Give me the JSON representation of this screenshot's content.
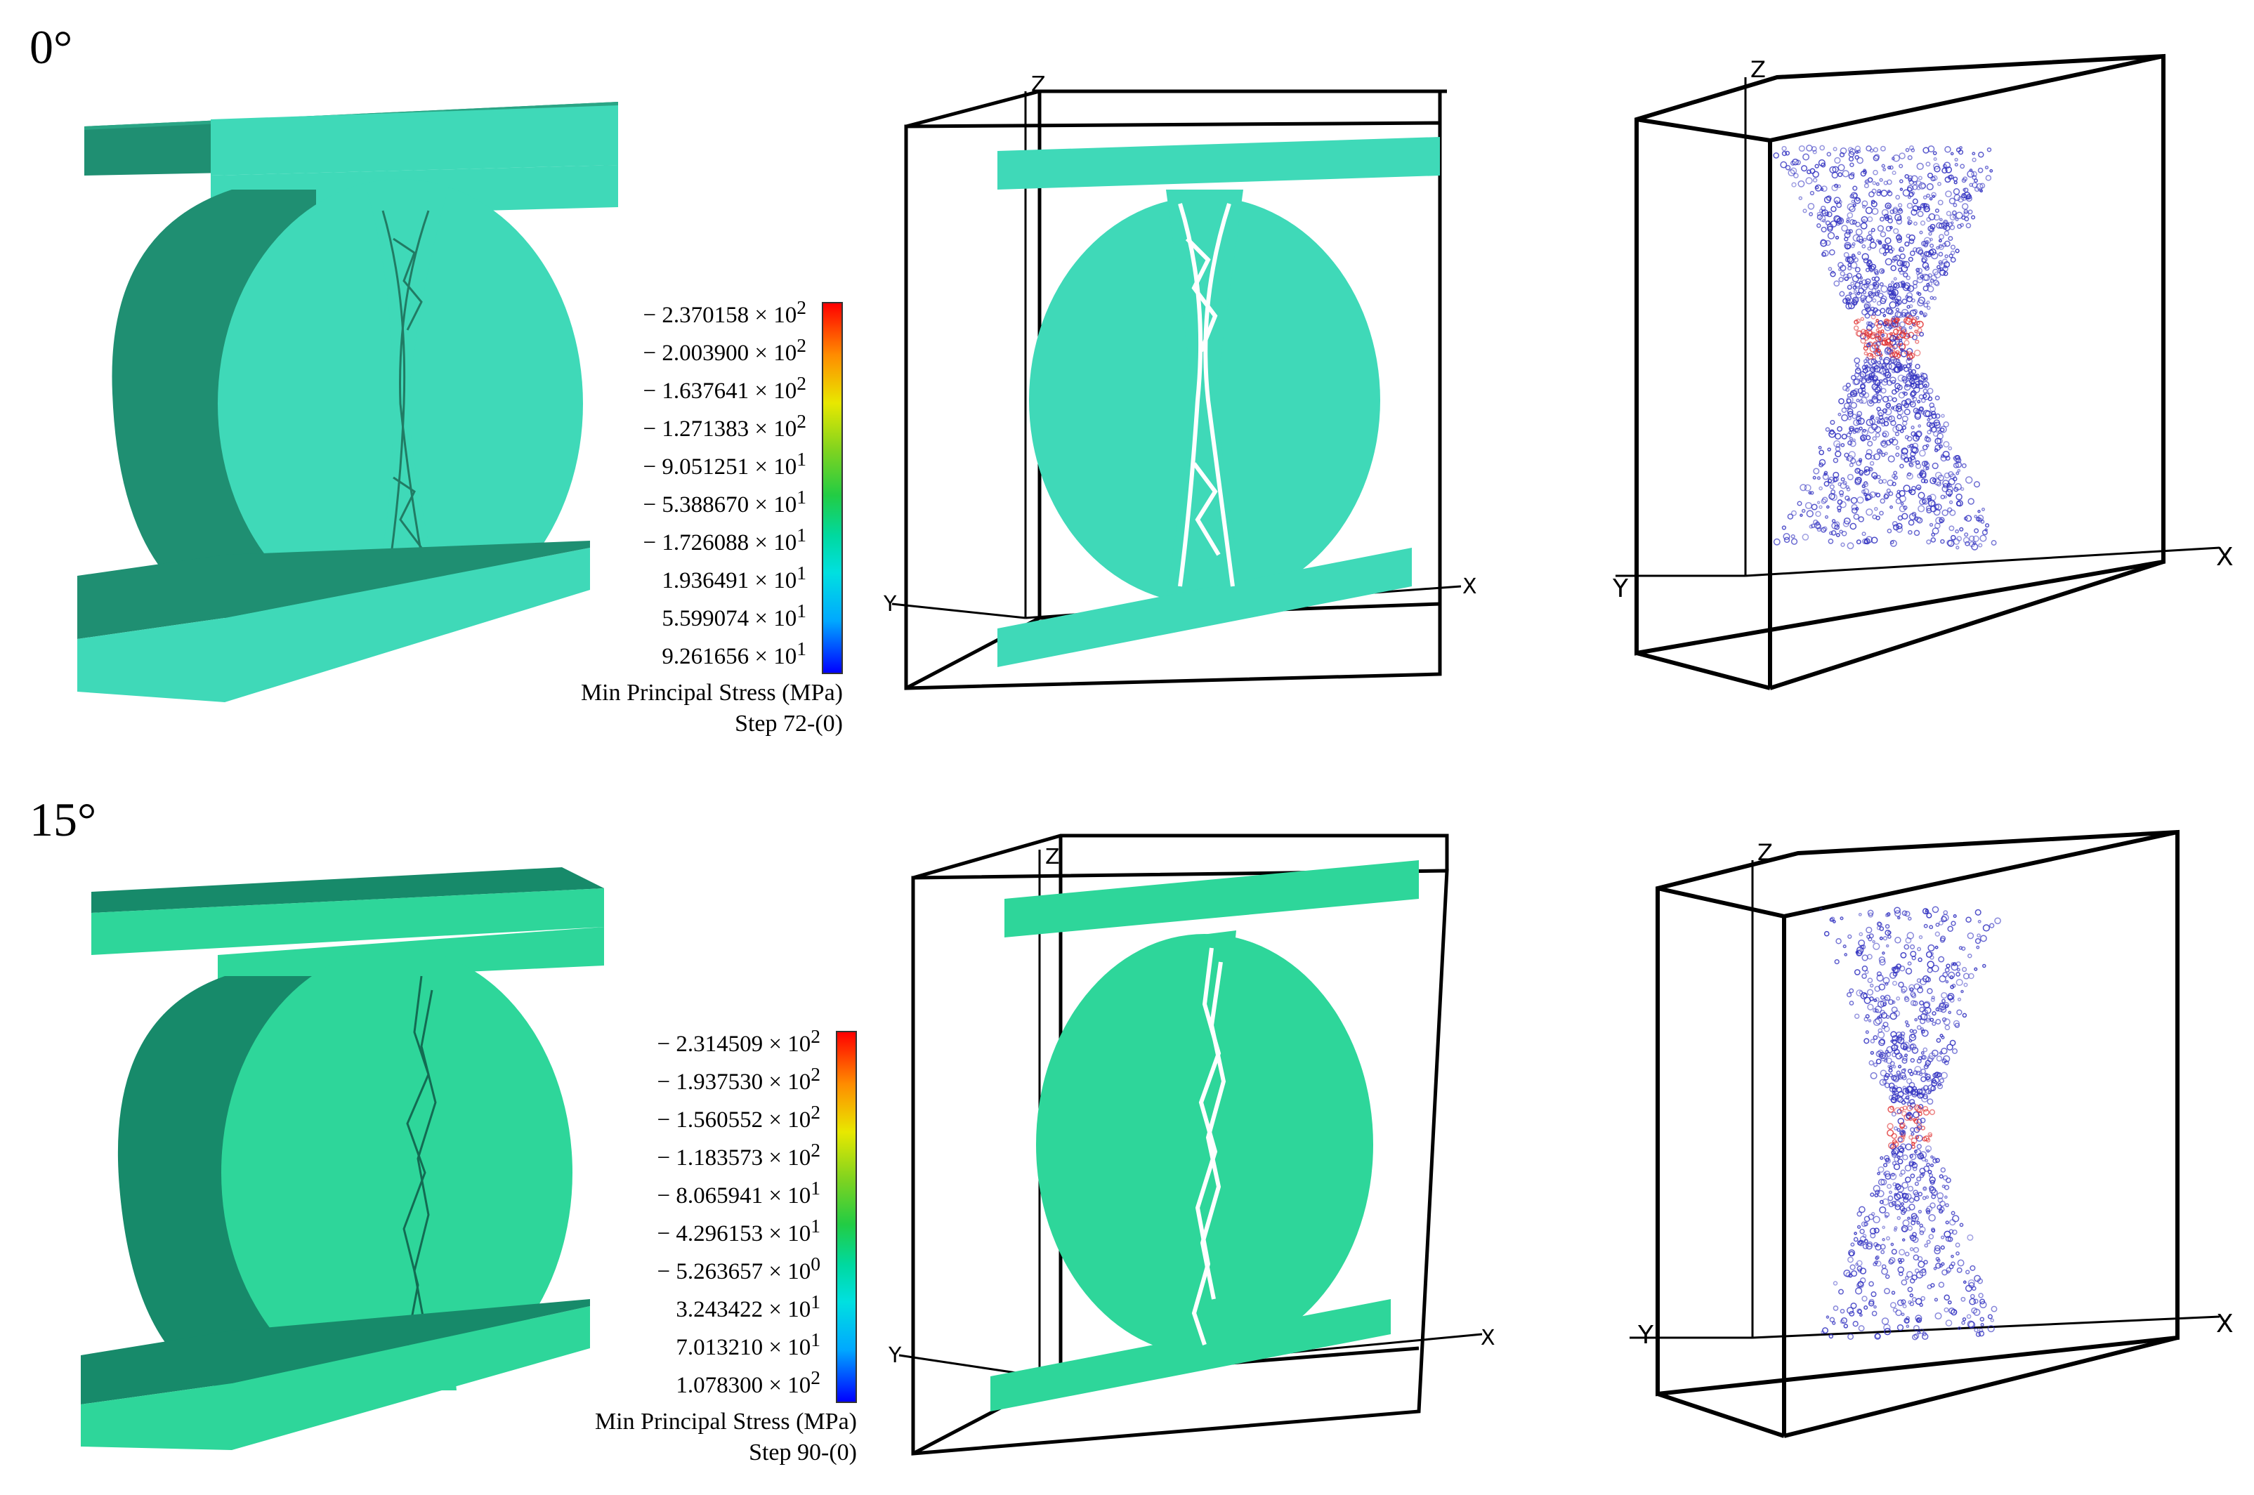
{
  "rows": [
    {
      "angle_label": "0°",
      "legend": {
        "ticks": [
          {
            "sign": "− ",
            "mant": "2.370158",
            "exp": "2"
          },
          {
            "sign": "− ",
            "mant": "2.003900",
            "exp": "2"
          },
          {
            "sign": "− ",
            "mant": "1.637641",
            "exp": "2"
          },
          {
            "sign": "− ",
            "mant": "1.271383",
            "exp": "2"
          },
          {
            "sign": "− ",
            "mant": "9.051251",
            "exp": "1"
          },
          {
            "sign": "− ",
            "mant": "5.388670",
            "exp": "1"
          },
          {
            "sign": "− ",
            "mant": "1.726088",
            "exp": "1"
          },
          {
            "sign": "",
            "mant": "1.936491",
            "exp": "1"
          },
          {
            "sign": "",
            "mant": "5.599074",
            "exp": "1"
          },
          {
            "sign": "",
            "mant": "9.261656",
            "exp": "1"
          }
        ],
        "title": "Min Principal Stress (MPa)",
        "step": "Step 72-(0)"
      }
    },
    {
      "angle_label": "15°",
      "legend": {
        "ticks": [
          {
            "sign": "− ",
            "mant": "2.314509",
            "exp": "2"
          },
          {
            "sign": "− ",
            "mant": "1.937530",
            "exp": "2"
          },
          {
            "sign": "− ",
            "mant": "1.560552",
            "exp": "2"
          },
          {
            "sign": "− ",
            "mant": "1.183573",
            "exp": "2"
          },
          {
            "sign": "− ",
            "mant": "8.065941",
            "exp": "1"
          },
          {
            "sign": "− ",
            "mant": "4.296153",
            "exp": "1"
          },
          {
            "sign": "− ",
            "mant": "5.263657",
            "exp": "0"
          },
          {
            "sign": "",
            "mant": "3.243422",
            "exp": "1"
          },
          {
            "sign": "",
            "mant": "7.013210",
            "exp": "1"
          },
          {
            "sign": "",
            "mant": "1.078300",
            "exp": "2"
          }
        ],
        "title": "Min Principal Stress (MPa)",
        "step": "Step 90-(0)"
      }
    }
  ],
  "axis_labels": {
    "x": "X",
    "y": "Y",
    "z": "Z"
  },
  "colors": {
    "specimen_face": "#3fd9b8",
    "specimen_side": "#1f8f72",
    "specimen_face_15": "#2ed69a",
    "specimen_side_15": "#178a6a",
    "tension_particles": "#e03030",
    "compression_particles": "#3030c0"
  }
}
